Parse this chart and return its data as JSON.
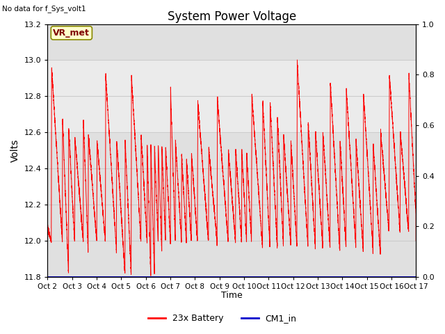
{
  "title": "System Power Voltage",
  "top_left_text": "No data for f_Sys_volt1",
  "ylabel_left": "Volts",
  "xlabel": "Time",
  "ylim_left": [
    11.8,
    13.2
  ],
  "ylim_right": [
    0.0,
    1.0
  ],
  "yticks_left": [
    11.8,
    12.0,
    12.2,
    12.4,
    12.6,
    12.8,
    13.0,
    13.2
  ],
  "yticks_right": [
    0.0,
    0.2,
    0.4,
    0.6,
    0.8,
    1.0
  ],
  "xtick_labels": [
    "Oct 2",
    "Oct 3",
    "Oct 4",
    "Oct 5",
    "Oct 6",
    "Oct 7",
    "Oct 8",
    "Oct 9",
    "Oct 10",
    "Oct 11",
    "Oct 12",
    "Oct 13",
    "Oct 14",
    "Oct 15",
    "Oct 16",
    "Oct 17"
  ],
  "legend_entries": [
    "23x Battery",
    "CM1_in"
  ],
  "legend_colors": [
    "#ff0000",
    "#0000cc"
  ],
  "line_color_battery": "#ff0000",
  "line_color_cm1": "#0000cc",
  "grid_color": "#cccccc",
  "plot_bg": "#e0e0e0",
  "light_band_color": "#ebebeb",
  "annotation_text": "VR_met",
  "annotation_bg": "#ffffcc",
  "annotation_border": "#888800",
  "annotation_text_color": "#800000",
  "figsize": [
    6.4,
    4.8
  ],
  "dpi": 100
}
